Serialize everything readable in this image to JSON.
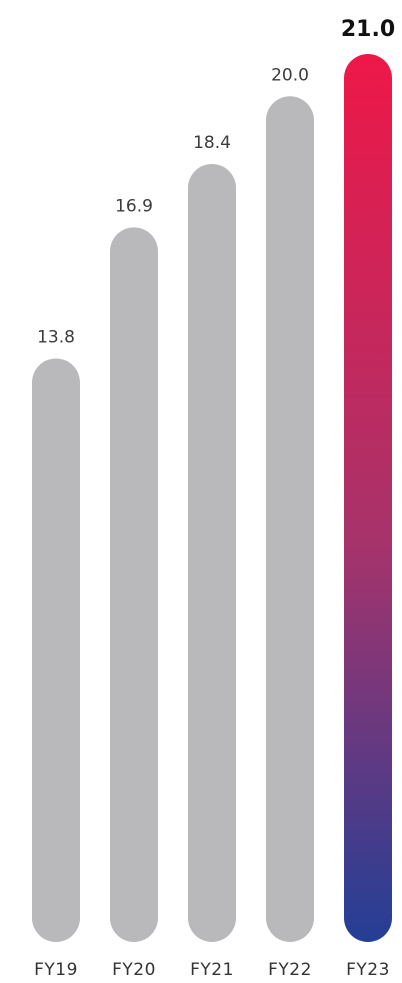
{
  "chart_data": {
    "type": "bar",
    "categories": [
      "FY19",
      "FY20",
      "FY21",
      "FY22",
      "FY23"
    ],
    "values": [
      13.8,
      16.9,
      18.4,
      20.0,
      21.0
    ],
    "value_labels": [
      "13.8",
      "16.9",
      "18.4",
      "20.0",
      "21.0"
    ],
    "title": "",
    "xlabel": "",
    "ylabel": "",
    "ylim": [
      0,
      21.0
    ],
    "grid": false,
    "highlight_index": 4,
    "colors": {
      "bar": "#b9b9bb",
      "highlight_top": "#ee1848",
      "highlight_mid": "#a7336b",
      "highlight_bottom": "#233f96"
    }
  }
}
